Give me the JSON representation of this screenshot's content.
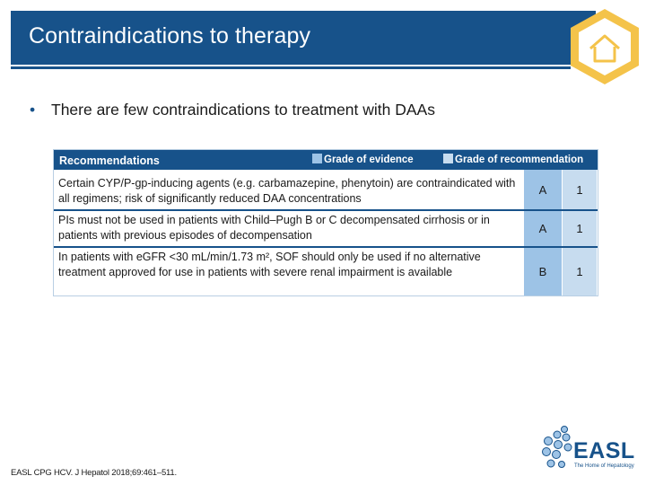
{
  "slide": {
    "title": "Contraindications to therapy",
    "bullet": "There are few contraindications to treatment with DAAs",
    "footnote": "EASL CPG HCV. J Hepatol 2018;69:461–511."
  },
  "home_icon": "home-icon",
  "table": {
    "header": "Recommendations",
    "legend_evidence": "Grade of evidence",
    "legend_recommendation": "Grade of recommendation",
    "rows": [
      {
        "text": "Certain CYP/P-gp-inducing agents (e.g. carbamazepine, phenytoin) are contraindicated with all regimens; risk of significantly reduced DAA concentrations",
        "evidence": "A",
        "recommendation": "1"
      },
      {
        "text": "PIs must not be used in patients with Child–Pugh B or C decompensated cirrhosis or in patients with previous episodes of decompensation",
        "evidence": "A",
        "recommendation": "1"
      },
      {
        "text": "In patients with eGFR <30 mL/min/1.73 m², SOF should only be used if no alternative treatment approved for use in patients with severe renal impairment is available",
        "evidence": "B",
        "recommendation": "1"
      }
    ]
  },
  "logo": {
    "name": "EASL",
    "tagline": "The Home of Hepatology"
  },
  "colors": {
    "brand_blue": "#17528a",
    "accent_yellow": "#f4c34a",
    "evidence_col": "#9dc3e6",
    "recommendation_col": "#c7dcef"
  }
}
